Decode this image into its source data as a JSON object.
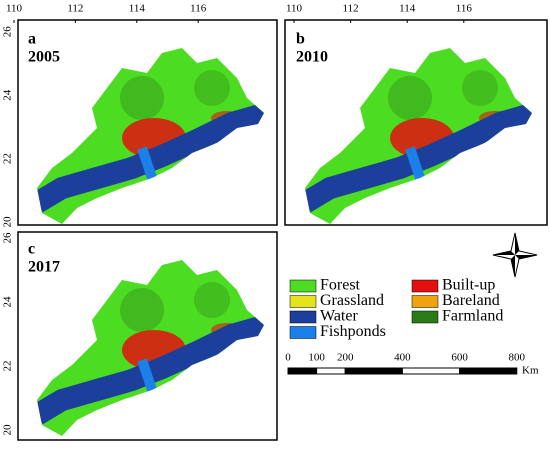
{
  "panels": [
    {
      "label": "a",
      "year": "2005",
      "xticks": [
        110,
        112,
        114,
        116
      ],
      "yticks": [
        20,
        22,
        24,
        26
      ]
    },
    {
      "label": "b",
      "year": "2010",
      "xticks": [
        110,
        112,
        114,
        116
      ]
    },
    {
      "label": "c",
      "year": "2017",
      "yticks": [
        20,
        22,
        24,
        26
      ]
    }
  ],
  "legend": [
    {
      "name": "Forest",
      "color": "#4cdc22"
    },
    {
      "name": "Grassland",
      "color": "#e6e21c"
    },
    {
      "name": "Water",
      "color": "#1c3f9c"
    },
    {
      "name": "Fishponds",
      "color": "#1b80e8"
    },
    {
      "name": "Built-up",
      "color": "#e41010"
    },
    {
      "name": "Bareland",
      "color": "#f0a30e"
    },
    {
      "name": "Farmland",
      "color": "#2b7a18"
    }
  ],
  "scale_bar": {
    "ticks": [
      0,
      100,
      200,
      400,
      600,
      800
    ],
    "unit": "Km"
  }
}
